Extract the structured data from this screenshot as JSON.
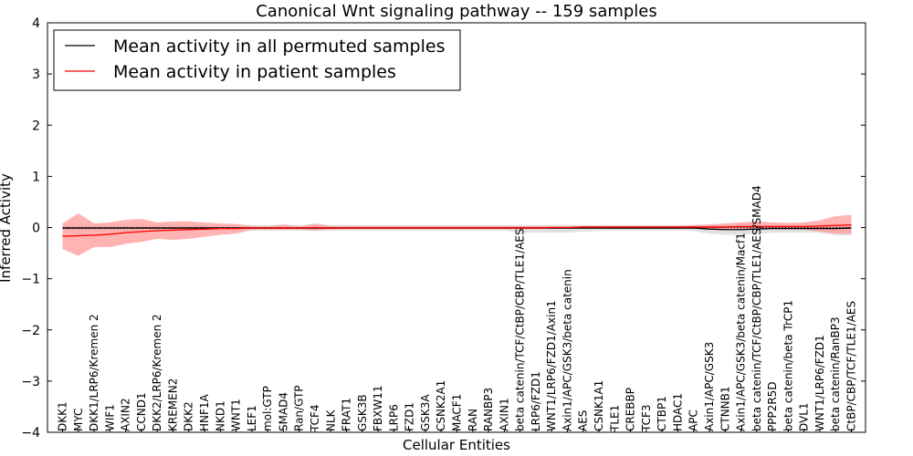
{
  "chart_data": {
    "type": "line",
    "title": "Canonical Wnt signaling pathway -- 159 samples",
    "xlabel": "Cellular Entities",
    "ylabel": "Inferred Activity",
    "ylim": [
      -4,
      4
    ],
    "yticks": [
      -4,
      -3,
      -2,
      -1,
      0,
      1,
      2,
      3,
      4
    ],
    "ytick_labels": [
      "−4",
      "−3",
      "−2",
      "−1",
      "0",
      "1",
      "2",
      "3",
      "4"
    ],
    "legend_position": "top-left",
    "colors": {
      "permuted_line": "#000000",
      "permuted_band": "#c8c8c8",
      "patient_line": "#ff0000",
      "patient_band": "#ff9a9a",
      "zero_line": "#000000"
    },
    "categories": [
      "DKK1",
      "MYC",
      "DKK1/LRP6/Kremen 2",
      "WIF1",
      "AXIN2",
      "CCND1",
      "DKK2/LRP6/Kremen 2",
      "KREMEN2",
      "DKK2",
      "HNF1A",
      "NKD1",
      "WNT1",
      "LEF1",
      "mol:GTP",
      "SMAD4",
      "Ran/GTP",
      "TCF4",
      "NLK",
      "FRAT1",
      "GSK3B",
      "FBXW11",
      "LRP6",
      "FZD1",
      "GSK3A",
      "CSNK2A1",
      "MACF1",
      "RAN",
      "RANBP3",
      "AXIN1",
      "beta catenin/TCF/CtBP/CBP/TLE1/AES",
      "LRP6/FZD1",
      "WNT1/LRP6/FZD1/Axin1",
      "Axin1/APC/GSK3/beta catenin",
      "AES",
      "CSNK1A1",
      "TLE1",
      "CREBBP",
      "TCF3",
      "CTBP1",
      "HDAC1",
      "APC",
      "Axin1/APC/GSK3",
      "CTNNB1",
      "Axin1/APC/GSK3/beta catenin/Macf1",
      "beta catenin/TCF/CtBP/CBP/TLE1/AES/SMAD4",
      "PPP2R5D",
      "beta catenin/beta TrCP1",
      "DVL1",
      "WNT1/LRP6/FZD1",
      "beta catenin/RanBP3",
      "CtBP/CBP/TCF/TLE1/AES"
    ],
    "series": [
      {
        "name": "Mean activity in all permuted samples",
        "values": [
          -0.01,
          -0.01,
          -0.01,
          -0.01,
          -0.01,
          -0.01,
          -0.01,
          -0.01,
          -0.01,
          -0.01,
          -0.01,
          -0.01,
          -0.01,
          -0.01,
          -0.01,
          -0.01,
          -0.01,
          -0.01,
          -0.01,
          -0.01,
          -0.01,
          -0.01,
          -0.01,
          -0.01,
          -0.01,
          -0.01,
          -0.01,
          -0.01,
          -0.01,
          -0.01,
          -0.01,
          -0.01,
          -0.01,
          -0.01,
          -0.01,
          -0.01,
          -0.01,
          -0.01,
          -0.01,
          -0.01,
          -0.01,
          -0.03,
          -0.04,
          -0.04,
          -0.03,
          -0.02,
          -0.02,
          -0.02,
          -0.02,
          -0.02,
          -0.01
        ],
        "lower": [
          -0.06,
          -0.08,
          -0.08,
          -0.08,
          -0.08,
          -0.08,
          -0.08,
          -0.08,
          -0.07,
          -0.06,
          -0.06,
          -0.06,
          -0.06,
          -0.06,
          -0.06,
          -0.06,
          -0.06,
          -0.06,
          -0.06,
          -0.06,
          -0.06,
          -0.06,
          -0.06,
          -0.06,
          -0.06,
          -0.06,
          -0.06,
          -0.06,
          -0.06,
          -0.1,
          -0.1,
          -0.1,
          -0.1,
          -0.08,
          -0.07,
          -0.06,
          -0.06,
          -0.06,
          -0.06,
          -0.06,
          -0.07,
          -0.12,
          -0.14,
          -0.14,
          -0.12,
          -0.1,
          -0.1,
          -0.1,
          -0.1,
          -0.15,
          -0.15
        ],
        "upper": [
          0.05,
          0.06,
          0.06,
          0.06,
          0.05,
          0.05,
          0.05,
          0.05,
          0.05,
          0.05,
          0.05,
          0.05,
          0.05,
          0.05,
          0.05,
          0.05,
          0.05,
          0.05,
          0.05,
          0.05,
          0.05,
          0.05,
          0.05,
          0.05,
          0.05,
          0.05,
          0.05,
          0.05,
          0.05,
          0.05,
          0.05,
          0.05,
          0.05,
          0.05,
          0.05,
          0.05,
          0.05,
          0.05,
          0.05,
          0.05,
          0.05,
          0.05,
          0.05,
          0.05,
          0.05,
          0.05,
          0.05,
          0.05,
          0.05,
          0.08,
          0.08
        ]
      },
      {
        "name": "Mean activity in patient samples",
        "values": [
          -0.17,
          -0.16,
          -0.15,
          -0.13,
          -0.1,
          -0.08,
          -0.06,
          -0.05,
          -0.04,
          -0.03,
          -0.02,
          -0.02,
          -0.01,
          -0.01,
          -0.01,
          -0.01,
          0.0,
          -0.01,
          -0.01,
          -0.01,
          -0.01,
          -0.01,
          -0.01,
          -0.01,
          -0.01,
          -0.01,
          -0.01,
          -0.01,
          -0.01,
          -0.01,
          -0.01,
          0.0,
          0.0,
          0.01,
          0.01,
          0.01,
          0.01,
          0.01,
          0.01,
          0.01,
          0.01,
          0.01,
          0.01,
          0.02,
          0.02,
          0.02,
          0.02,
          0.02,
          0.03,
          0.04,
          0.05
        ],
        "lower": [
          -0.42,
          -0.55,
          -0.38,
          -0.38,
          -0.32,
          -0.28,
          -0.22,
          -0.24,
          -0.22,
          -0.18,
          -0.14,
          -0.12,
          -0.04,
          -0.04,
          -0.04,
          -0.04,
          -0.06,
          -0.04,
          -0.03,
          -0.03,
          -0.03,
          -0.03,
          -0.03,
          -0.03,
          -0.03,
          -0.03,
          -0.03,
          -0.03,
          -0.03,
          -0.03,
          -0.03,
          -0.02,
          -0.02,
          -0.02,
          -0.02,
          -0.02,
          -0.02,
          -0.02,
          -0.02,
          -0.02,
          -0.02,
          -0.03,
          -0.03,
          -0.03,
          -0.03,
          -0.03,
          -0.03,
          -0.04,
          -0.08,
          -0.12,
          -0.12
        ],
        "upper": [
          0.08,
          0.28,
          0.08,
          0.1,
          0.15,
          0.17,
          0.1,
          0.12,
          0.12,
          0.1,
          0.08,
          0.07,
          0.03,
          0.02,
          0.06,
          0.02,
          0.08,
          0.03,
          0.03,
          0.03,
          0.03,
          0.03,
          0.03,
          0.03,
          0.03,
          0.03,
          0.03,
          0.03,
          0.03,
          0.03,
          0.03,
          0.03,
          0.03,
          0.03,
          0.03,
          0.03,
          0.03,
          0.03,
          0.03,
          0.03,
          0.05,
          0.06,
          0.08,
          0.1,
          0.12,
          0.1,
          0.09,
          0.1,
          0.14,
          0.22,
          0.25
        ]
      }
    ]
  }
}
